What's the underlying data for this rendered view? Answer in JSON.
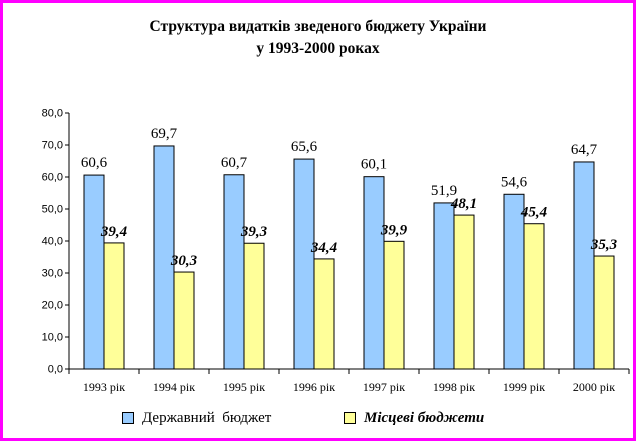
{
  "chart_data": {
    "type": "bar",
    "title_line1": "Структура видатків зведеного бюджету України",
    "title_line2": "у 1993-2000 роках",
    "categories": [
      "1993 рік",
      "1994 рік",
      "1995 рік",
      "1996 рік",
      "1997 рік",
      "1998 рік",
      "1999 рік",
      "2000 рік"
    ],
    "series": [
      {
        "name": "Державний  бюджет",
        "values": [
          60.6,
          69.7,
          60.7,
          65.6,
          60.1,
          51.9,
          54.6,
          64.7
        ],
        "labels": [
          "60,6",
          "69,7",
          "60,7",
          "65,6",
          "60,1",
          "51,9",
          "54,6",
          "64,7"
        ],
        "color": "#99ccff"
      },
      {
        "name": "Місцеві бюджети",
        "values": [
          39.4,
          30.3,
          39.3,
          34.4,
          39.9,
          48.1,
          45.4,
          35.3
        ],
        "labels": [
          "39,4",
          "30,3",
          "39,3",
          "34,4",
          "39,9",
          "48,1",
          "45,4",
          "35,3"
        ],
        "color": "#ffff99"
      }
    ],
    "yticks": [
      "0,0",
      "10,0",
      "20,0",
      "30,0",
      "40,0",
      "50,0",
      "60,0",
      "70,0",
      "80,0"
    ],
    "ylim": [
      0,
      80
    ],
    "grid": false,
    "legend_position": "bottom"
  }
}
